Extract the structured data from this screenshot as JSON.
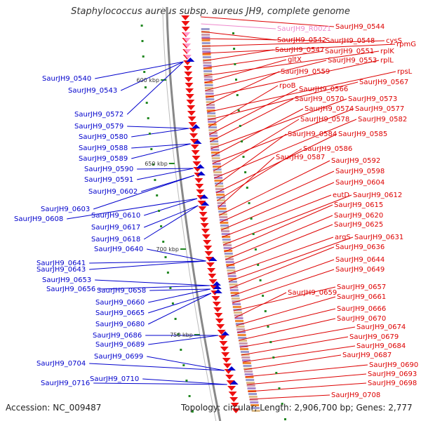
{
  "title": "Staphylococcus aureus subsp. aureus JH9, complete genome",
  "footer": {
    "accession": "Accession: NC_009487",
    "summary": "Topology: circular; Length: 2,906,700 bp; Genes: 2,777"
  },
  "colors": {
    "plus_label": "#0000cc",
    "minus_label": "#dd0000",
    "rna_label": "#ee88cc",
    "backbone": "#888888",
    "gc_marker": "#228822"
  },
  "kbp_markers": [
    "600 kbp",
    "650 kbp",
    "700 kbp",
    "750 kbp"
  ],
  "left_labels": [
    "SaurJH9_0540",
    "SaurJH9_0543",
    "SaurJH9_0572",
    "SaurJH9_0579",
    "SaurJH9_0580",
    "SaurJH9_0588",
    "SaurJH9_0589",
    "SaurJH9_0590",
    "SaurJH9_0591",
    "SaurJH9_0602",
    "SaurJH9_0603",
    "SaurJH9_0608",
    "SaurJH9_0610",
    "SaurJH9_0617",
    "SaurJH9_0618",
    "SaurJH9_0640",
    "SaurJH9_0641",
    "SaurJH9_0643",
    "SaurJH9_0653",
    "SaurJH9_0656",
    "SaurJH9_0658",
    "SaurJH9_0660",
    "SaurJH9_0665",
    "SaurJH9_0680",
    "SaurJH9_0686",
    "SaurJH9_0689",
    "SaurJH9_0699",
    "SaurJH9_0704",
    "SaurJH9_0710",
    "SaurJH9_0716"
  ],
  "right_labels": [
    "SaurJH9_0544",
    "SaurJH9_R0021",
    "SaurJH9_0542",
    "SaurJH9_0548",
    "cysS",
    "rpmG",
    "SaurJH9_0547",
    "SaurJH9_0551",
    "rplK",
    "gltX",
    "SaurJH9_0553",
    "rplL",
    "SaurJH9_0559",
    "rpsL",
    "SaurJH9_0567",
    "rpoB",
    "SaurJH9_0566",
    "SaurJH9_0570",
    "SaurJH9_0573",
    "SaurJH9_0574",
    "SaurJH9_0577",
    "SaurJH9_0578",
    "SaurJH9_0582",
    "SaurJH9_0584",
    "SaurJH9_0585",
    "SaurJH9_0586",
    "SaurJH9_0587",
    "SaurJH9_0592",
    "SaurJH9_0598",
    "SaurJH9_0604",
    "eutD",
    "SaurJH9_0612",
    "SaurJH9_0615",
    "SaurJH9_0620",
    "SaurJH9_0625",
    "argS",
    "SaurJH9_0631",
    "SaurJH9_0636",
    "SaurJH9_0644",
    "SaurJH9_0649",
    "SaurJH9_0657",
    "SaurJH9_0659",
    "SaurJH9_0661",
    "SaurJH9_0666",
    "SaurJH9_0670",
    "SaurJH9_0674",
    "SaurJH9_0679",
    "SaurJH9_0684",
    "SaurJH9_0687",
    "SaurJH9_0690",
    "SaurJH9_0693",
    "SaurJH9_0698",
    "SaurJH9_0708"
  ]
}
